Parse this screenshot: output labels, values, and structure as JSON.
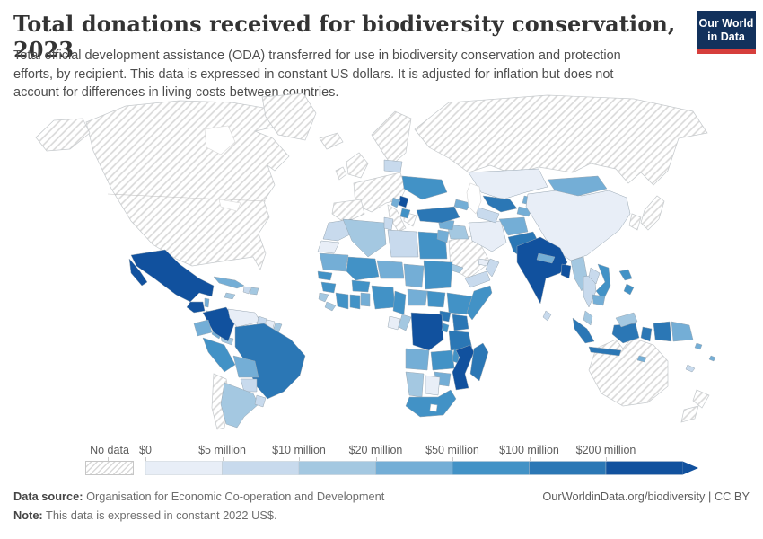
{
  "header": {
    "title": "Total donations received for biodiversity conservation, 2023",
    "subtitle": "Total official development assistance (ODA) transferred for use in biodiversity conservation and protection efforts, by recipient. This data is expressed in constant US dollars. It is adjusted for inflation but does not account for differences in living costs between countries.",
    "logo": {
      "line1": "Our World",
      "line2": "in Data",
      "bg": "#12315c",
      "stripe": "#d63e3c"
    }
  },
  "footer": {
    "source_label": "Data source:",
    "source_text": "Organisation for Economic Co-operation and Development",
    "note_label": "Note:",
    "note_text": "This data is expressed in constant 2022 US$.",
    "credit": "OurWorldinData.org/biodiversity | CC BY"
  },
  "chart_data": {
    "type": "choropleth_map",
    "title": "Total donations received for biodiversity conservation, 2023",
    "year": 2023,
    "unit": "constant 2022 US$",
    "legend": {
      "no_data_label": "No data",
      "ticks": [
        "$0",
        "$5 million",
        "$10 million",
        "$20 million",
        "$50 million",
        "$100 million",
        "$200 million"
      ],
      "bins": [
        {
          "label": "$0 – $5 million",
          "color": "#e8eef7"
        },
        {
          "label": "$5 – $10 million",
          "color": "#c8daed"
        },
        {
          "label": "$10 – $20 million",
          "color": "#a4c8e1"
        },
        {
          "label": "$20 – $50 million",
          "color": "#74aed6"
        },
        {
          "label": "$50 – $100 million",
          "color": "#4292c6"
        },
        {
          "label": "$100 – $200 million",
          "color": "#2b77b5"
        },
        {
          "label": "$200 million +",
          "color": "#11519e"
        }
      ],
      "no_data_style": "hatched"
    },
    "countries": [
      {
        "id": "canada-usa",
        "name": "Canada & United States",
        "bin": -1
      },
      {
        "id": "greenland",
        "name": "Greenland",
        "bin": -1
      },
      {
        "id": "iceland",
        "name": "Iceland",
        "bin": -1
      },
      {
        "id": "europe",
        "name": "Western & Northern Europe",
        "bin": -1
      },
      {
        "id": "russia",
        "name": "Russia",
        "bin": -1
      },
      {
        "id": "japan",
        "name": "Japan",
        "bin": -1
      },
      {
        "id": "south-korea",
        "name": "South Korea",
        "bin": -1
      },
      {
        "id": "saudi-arabia",
        "name": "Saudi Arabia",
        "bin": -1
      },
      {
        "id": "australia",
        "name": "Australia",
        "bin": -1
      },
      {
        "id": "new-zealand",
        "name": "New Zealand",
        "bin": -1
      },
      {
        "id": "chile",
        "name": "Chile",
        "bin": -1
      },
      {
        "id": "mexico",
        "name": "Mexico",
        "bin": 6
      },
      {
        "id": "guatemala",
        "name": "Guatemala",
        "bin": 6
      },
      {
        "id": "belize",
        "name": "Belize",
        "bin": 3
      },
      {
        "id": "honduras",
        "name": "Honduras",
        "bin": 3
      },
      {
        "id": "nicaragua",
        "name": "Nicaragua",
        "bin": 1
      },
      {
        "id": "costa-rica",
        "name": "Costa Rica",
        "bin": 3
      },
      {
        "id": "panama",
        "name": "Panama",
        "bin": 2
      },
      {
        "id": "cuba",
        "name": "Cuba",
        "bin": 3
      },
      {
        "id": "jamaica",
        "name": "Jamaica",
        "bin": 2
      },
      {
        "id": "haiti",
        "name": "Haiti",
        "bin": 1
      },
      {
        "id": "dominican-republic",
        "name": "Dominican Republic",
        "bin": 2
      },
      {
        "id": "colombia",
        "name": "Colombia",
        "bin": 6
      },
      {
        "id": "venezuela",
        "name": "Venezuela",
        "bin": 0
      },
      {
        "id": "guyana",
        "name": "Guyana",
        "bin": 1
      },
      {
        "id": "suriname",
        "name": "Suriname",
        "bin": 0
      },
      {
        "id": "french-guiana",
        "name": "French Guiana",
        "bin": 2
      },
      {
        "id": "ecuador",
        "name": "Ecuador",
        "bin": 3
      },
      {
        "id": "peru",
        "name": "Peru",
        "bin": 4
      },
      {
        "id": "brazil",
        "name": "Brazil",
        "bin": 5
      },
      {
        "id": "bolivia",
        "name": "Bolivia",
        "bin": 3
      },
      {
        "id": "paraguay",
        "name": "Paraguay",
        "bin": 1
      },
      {
        "id": "argentina",
        "name": "Argentina",
        "bin": 2
      },
      {
        "id": "uruguay",
        "name": "Uruguay",
        "bin": 1
      },
      {
        "id": "morocco",
        "name": "Morocco",
        "bin": 1
      },
      {
        "id": "western-sahara",
        "name": "Western Sahara",
        "bin": 0
      },
      {
        "id": "algeria",
        "name": "Algeria",
        "bin": 2
      },
      {
        "id": "tunisia",
        "name": "Tunisia",
        "bin": 1
      },
      {
        "id": "libya",
        "name": "Libya",
        "bin": 1
      },
      {
        "id": "egypt",
        "name": "Egypt",
        "bin": 4
      },
      {
        "id": "mauritania",
        "name": "Mauritania",
        "bin": 3
      },
      {
        "id": "mali",
        "name": "Mali",
        "bin": 4
      },
      {
        "id": "niger",
        "name": "Niger",
        "bin": 3
      },
      {
        "id": "chad",
        "name": "Chad",
        "bin": 3
      },
      {
        "id": "sudan",
        "name": "Sudan",
        "bin": 4
      },
      {
        "id": "eritrea",
        "name": "Eritrea",
        "bin": 2
      },
      {
        "id": "senegal",
        "name": "Senegal",
        "bin": 4
      },
      {
        "id": "guinea",
        "name": "Guinea",
        "bin": 4
      },
      {
        "id": "sierra-leone",
        "name": "Sierra Leone",
        "bin": 2
      },
      {
        "id": "liberia",
        "name": "Liberia",
        "bin": 2
      },
      {
        "id": "cote-divoire",
        "name": "Cote d'Ivoire",
        "bin": 4
      },
      {
        "id": "ghana",
        "name": "Ghana",
        "bin": 4
      },
      {
        "id": "togo-benin",
        "name": "Togo & Benin",
        "bin": 3
      },
      {
        "id": "burkina-faso",
        "name": "Burkina Faso",
        "bin": 4
      },
      {
        "id": "nigeria",
        "name": "Nigeria",
        "bin": 4
      },
      {
        "id": "cameroon",
        "name": "Cameroon",
        "bin": 4
      },
      {
        "id": "central-african-republic",
        "name": "Central African Republic",
        "bin": 3
      },
      {
        "id": "south-sudan",
        "name": "South Sudan",
        "bin": 4
      },
      {
        "id": "ethiopia",
        "name": "Ethiopia",
        "bin": 4
      },
      {
        "id": "somalia",
        "name": "Somalia",
        "bin": 4
      },
      {
        "id": "uganda",
        "name": "Uganda",
        "bin": 5
      },
      {
        "id": "kenya",
        "name": "Kenya",
        "bin": 5
      },
      {
        "id": "gabon",
        "name": "Gabon",
        "bin": 0
      },
      {
        "id": "congo",
        "name": "Congo",
        "bin": 2
      },
      {
        "id": "drc",
        "name": "Democratic Republic of Congo",
        "bin": 6
      },
      {
        "id": "rwanda-burundi",
        "name": "Rwanda & Burundi",
        "bin": 4
      },
      {
        "id": "tanzania",
        "name": "Tanzania",
        "bin": 5
      },
      {
        "id": "angola",
        "name": "Angola",
        "bin": 3
      },
      {
        "id": "zambia",
        "name": "Zambia",
        "bin": 4
      },
      {
        "id": "malawi",
        "name": "Malawi",
        "bin": 4
      },
      {
        "id": "mozambique",
        "name": "Mozambique",
        "bin": 6
      },
      {
        "id": "zimbabwe",
        "name": "Zimbabwe",
        "bin": 3
      },
      {
        "id": "namibia",
        "name": "Namibia",
        "bin": 2
      },
      {
        "id": "botswana",
        "name": "Botswana",
        "bin": 0
      },
      {
        "id": "south-africa",
        "name": "South Africa",
        "bin": 4
      },
      {
        "id": "madagascar",
        "name": "Madagascar",
        "bin": 5
      },
      {
        "id": "yemen",
        "name": "Yemen",
        "bin": 1
      },
      {
        "id": "oman",
        "name": "Oman",
        "bin": 1
      },
      {
        "id": "uae",
        "name": "United Arab Emirates",
        "bin": 0
      },
      {
        "id": "iraq",
        "name": "Iraq",
        "bin": 2
      },
      {
        "id": "syria",
        "name": "Syria",
        "bin": 3
      },
      {
        "id": "jordan",
        "name": "Jordan",
        "bin": 3
      },
      {
        "id": "iran",
        "name": "Iran",
        "bin": 0
      },
      {
        "id": "turkey",
        "name": "Turkey",
        "bin": 5
      },
      {
        "id": "caucasus",
        "name": "Georgia, Armenia & Azerbaijan",
        "bin": 3
      },
      {
        "id": "belarus",
        "name": "Belarus",
        "bin": 1
      },
      {
        "id": "ukraine",
        "name": "Ukraine",
        "bin": 4
      },
      {
        "id": "serbia",
        "name": "Serbia",
        "bin": 6
      },
      {
        "id": "bosnia",
        "name": "Bosnia and Herzegovina",
        "bin": 3
      },
      {
        "id": "albania-north-macedonia",
        "name": "Albania & North Macedonia",
        "bin": 4
      },
      {
        "id": "kazakhstan",
        "name": "Kazakhstan",
        "bin": 0
      },
      {
        "id": "uzbekistan",
        "name": "Uzbekistan",
        "bin": 5
      },
      {
        "id": "turkmenistan",
        "name": "Turkmenistan",
        "bin": 1
      },
      {
        "id": "kyrgyzstan",
        "name": "Kyrgyzstan",
        "bin": 3
      },
      {
        "id": "tajikistan",
        "name": "Tajikistan",
        "bin": 3
      },
      {
        "id": "afghanistan",
        "name": "Afghanistan",
        "bin": 3
      },
      {
        "id": "pakistan",
        "name": "Pakistan",
        "bin": 5
      },
      {
        "id": "china",
        "name": "China",
        "bin": 0
      },
      {
        "id": "mongolia",
        "name": "Mongolia",
        "bin": 3
      },
      {
        "id": "india",
        "name": "India",
        "bin": 6
      },
      {
        "id": "sri-lanka",
        "name": "Sri Lanka",
        "bin": 1
      },
      {
        "id": "nepal",
        "name": "Nepal",
        "bin": 3
      },
      {
        "id": "bangladesh",
        "name": "Bangladesh",
        "bin": 6
      },
      {
        "id": "myanmar",
        "name": "Myanmar",
        "bin": 2
      },
      {
        "id": "thailand",
        "name": "Thailand",
        "bin": 1
      },
      {
        "id": "laos",
        "name": "Laos",
        "bin": 1
      },
      {
        "id": "vietnam",
        "name": "Vietnam",
        "bin": 4
      },
      {
        "id": "cambodia",
        "name": "Cambodia",
        "bin": 3
      },
      {
        "id": "indonesia",
        "name": "Indonesia",
        "bin": 5
      },
      {
        "id": "malaysia",
        "name": "Malaysia",
        "bin": 2
      },
      {
        "id": "philippines",
        "name": "Philippines",
        "bin": 4
      },
      {
        "id": "papua-new-guinea",
        "name": "Papua New Guinea",
        "bin": 3
      },
      {
        "id": "timor-leste",
        "name": "Timor-Leste",
        "bin": 3
      },
      {
        "id": "solomon-islands",
        "name": "Solomon Islands",
        "bin": 3
      },
      {
        "id": "fiji",
        "name": "Fiji",
        "bin": 3
      },
      {
        "id": "new-caledonia",
        "name": "New Caledonia",
        "bin": 1
      }
    ]
  }
}
